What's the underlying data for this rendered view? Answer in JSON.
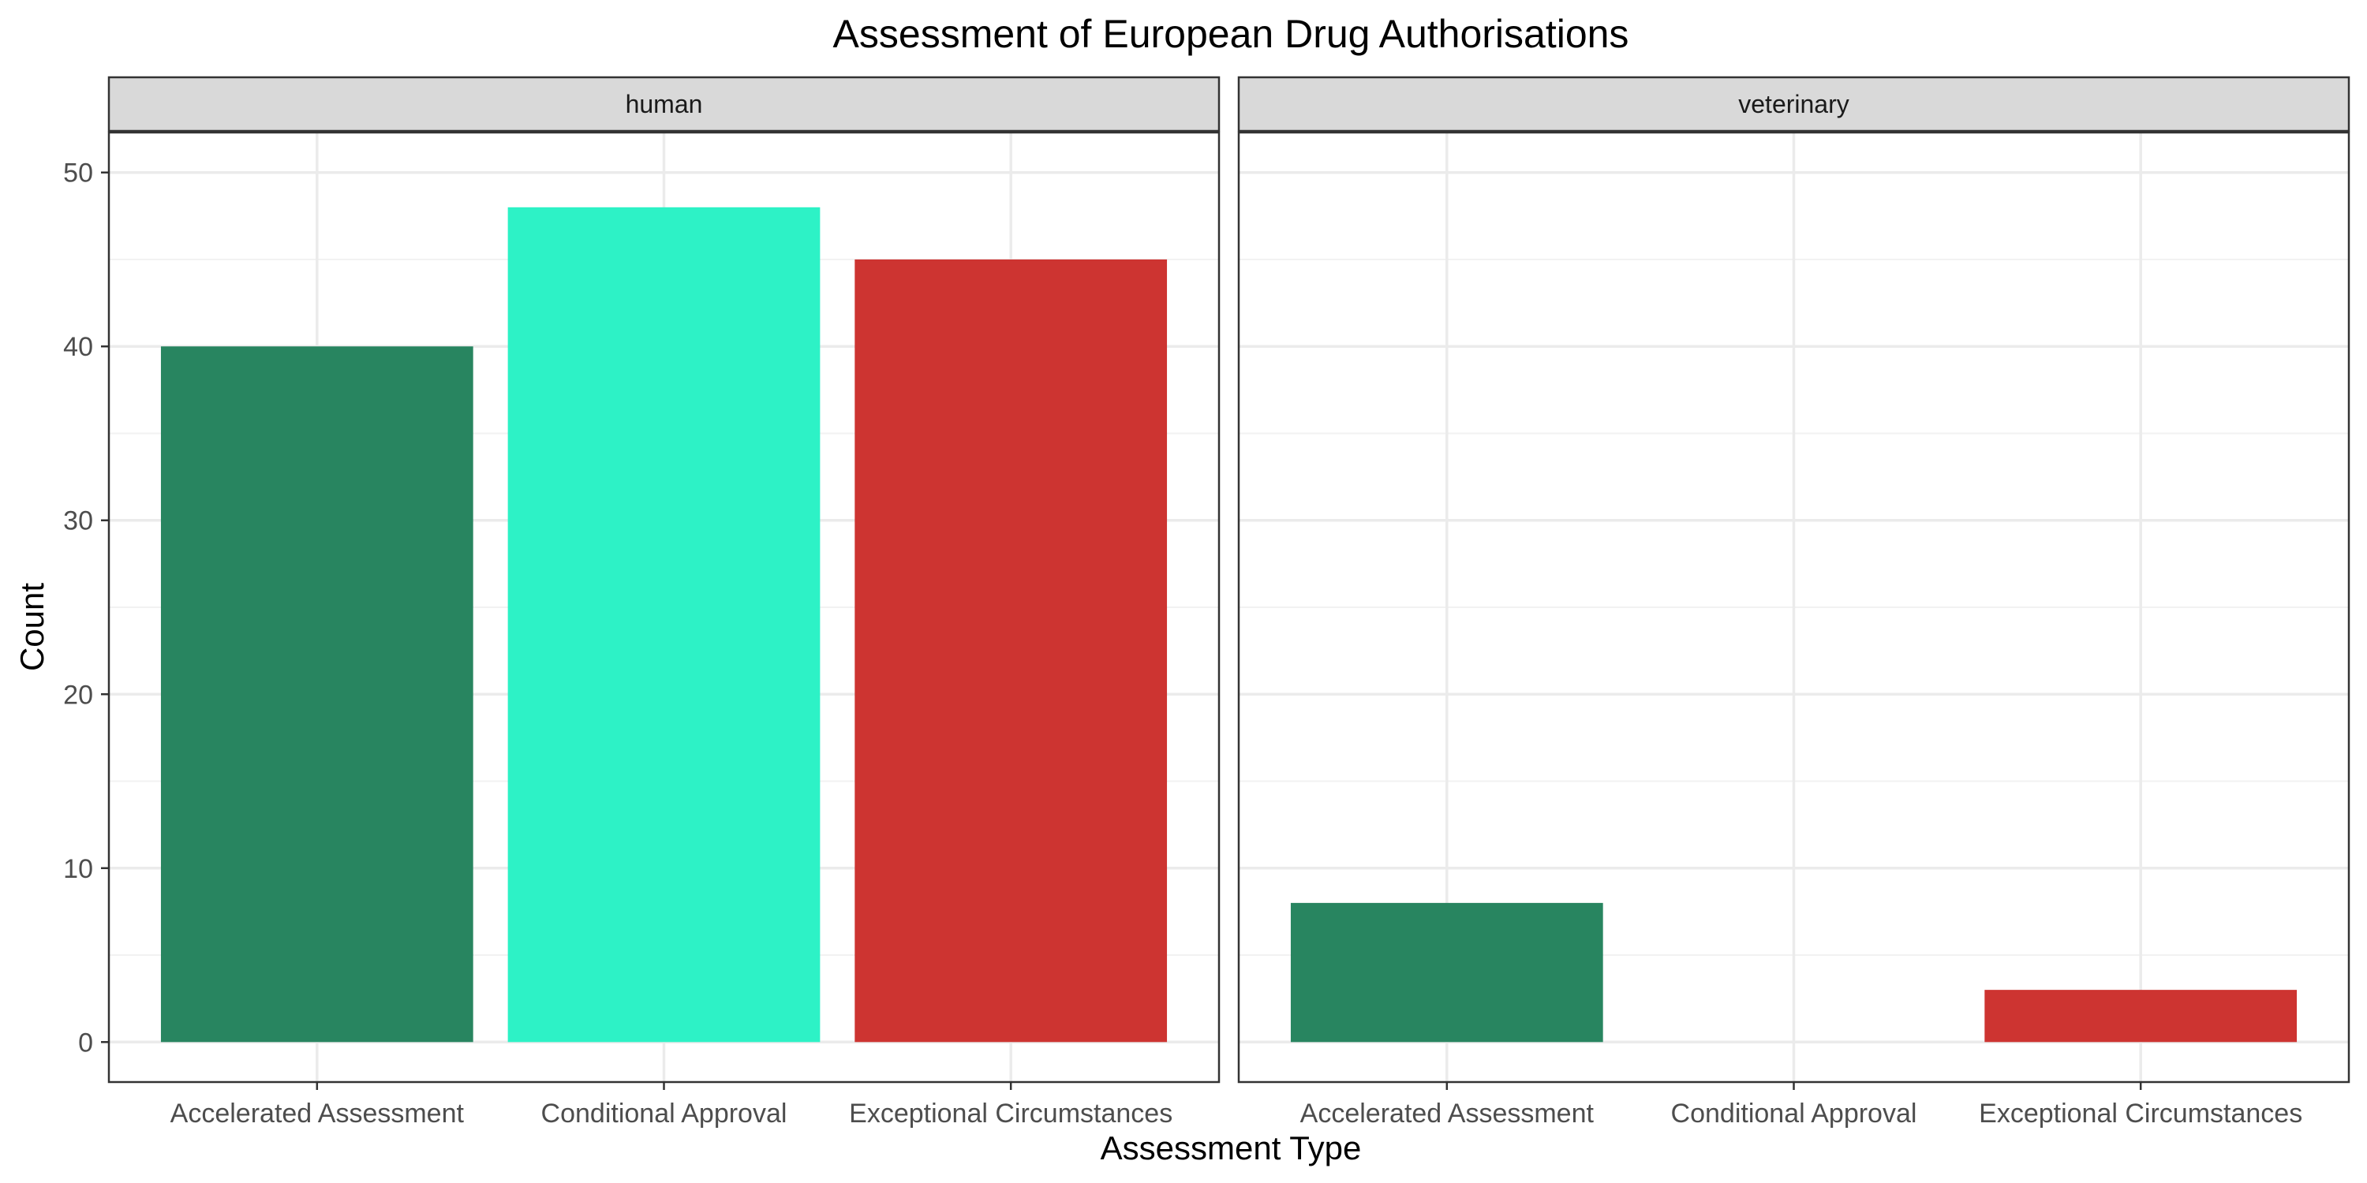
{
  "chart_data": {
    "type": "bar",
    "title": "Assessment of European Drug Authorisations",
    "xlabel": "Assessment Type",
    "ylabel": "Count",
    "ylim": [
      -2.3,
      52.3
    ],
    "yticks": [
      0,
      10,
      20,
      30,
      40,
      50
    ],
    "grid": true,
    "categories": [
      "Accelerated Assessment",
      "Conditional Approval",
      "Exceptional Circumstances"
    ],
    "category_colors": [
      "#288560",
      "#2DF2C6",
      "#CD3431"
    ],
    "facets": [
      {
        "label": "human",
        "values": [
          40,
          48,
          45
        ]
      },
      {
        "label": "veterinary",
        "values": [
          8,
          0,
          3
        ]
      }
    ]
  }
}
